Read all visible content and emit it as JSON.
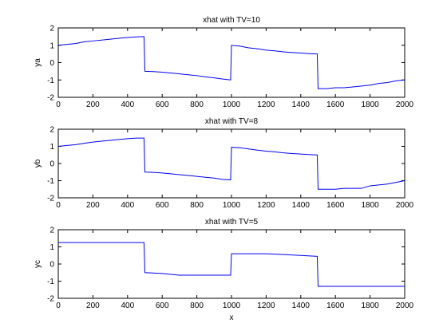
{
  "chart_data": [
    {
      "type": "line",
      "title": "xhat with TV=10",
      "xlabel": "",
      "ylabel": "ya",
      "xlim": [
        0,
        2000
      ],
      "ylim": [
        -2,
        2
      ],
      "xticks": [
        0,
        200,
        400,
        600,
        800,
        1000,
        1200,
        1400,
        1600,
        1800,
        2000
      ],
      "yticks": [
        -2,
        -1,
        0,
        1,
        2
      ],
      "grid": false,
      "line_color": "#0000ff",
      "series": [
        {
          "x": [
            0,
            50,
            100,
            150,
            200,
            250,
            300,
            350,
            400,
            450,
            495,
            500,
            550,
            600,
            650,
            700,
            750,
            800,
            850,
            900,
            950,
            995,
            1000,
            1050,
            1100,
            1150,
            1200,
            1250,
            1300,
            1350,
            1400,
            1450,
            1495,
            1500,
            1550,
            1600,
            1650,
            1700,
            1750,
            1800,
            1850,
            1900,
            1950,
            2000
          ],
          "y": [
            1.0,
            1.05,
            1.1,
            1.2,
            1.25,
            1.3,
            1.35,
            1.4,
            1.45,
            1.48,
            1.5,
            -0.5,
            -0.52,
            -0.55,
            -0.6,
            -0.65,
            -0.7,
            -0.75,
            -0.82,
            -0.88,
            -0.95,
            -1.0,
            1.0,
            0.95,
            0.85,
            0.8,
            0.72,
            0.68,
            0.62,
            0.58,
            0.55,
            0.52,
            0.5,
            -1.5,
            -1.5,
            -1.45,
            -1.45,
            -1.4,
            -1.35,
            -1.3,
            -1.2,
            -1.15,
            -1.05,
            -1.0
          ]
        }
      ]
    },
    {
      "type": "line",
      "title": "xhat with TV=8",
      "xlabel": "",
      "ylabel": "yb",
      "xlim": [
        0,
        2000
      ],
      "ylim": [
        -2,
        2
      ],
      "xticks": [
        0,
        200,
        400,
        600,
        800,
        1000,
        1200,
        1400,
        1600,
        1800,
        2000
      ],
      "yticks": [
        -2,
        -1,
        0,
        1,
        2
      ],
      "grid": false,
      "line_color": "#0000ff",
      "series": [
        {
          "x": [
            0,
            50,
            100,
            150,
            200,
            250,
            300,
            350,
            400,
            450,
            495,
            500,
            550,
            600,
            650,
            700,
            750,
            800,
            850,
            900,
            950,
            995,
            1000,
            1050,
            1100,
            1150,
            1200,
            1250,
            1300,
            1350,
            1400,
            1450,
            1495,
            1500,
            1550,
            1600,
            1650,
            1700,
            1750,
            1800,
            1850,
            1900,
            1950,
            2000
          ],
          "y": [
            1.0,
            1.05,
            1.1,
            1.18,
            1.25,
            1.3,
            1.35,
            1.4,
            1.45,
            1.48,
            1.48,
            -0.5,
            -0.52,
            -0.55,
            -0.6,
            -0.65,
            -0.7,
            -0.75,
            -0.8,
            -0.85,
            -0.93,
            -0.95,
            0.95,
            0.92,
            0.85,
            0.78,
            0.72,
            0.68,
            0.62,
            0.58,
            0.55,
            0.52,
            0.5,
            -1.5,
            -1.5,
            -1.5,
            -1.45,
            -1.45,
            -1.45,
            -1.3,
            -1.25,
            -1.2,
            -1.1,
            -1.0
          ]
        }
      ]
    },
    {
      "type": "line",
      "title": "xhat with TV=5",
      "xlabel": "x",
      "ylabel": "yc",
      "xlim": [
        0,
        2000
      ],
      "ylim": [
        -2,
        2
      ],
      "xticks": [
        0,
        200,
        400,
        600,
        800,
        1000,
        1200,
        1400,
        1600,
        1800,
        2000
      ],
      "yticks": [
        -2,
        -1,
        0,
        1,
        2
      ],
      "grid": false,
      "line_color": "#0000ff",
      "series": [
        {
          "x": [
            0,
            495,
            500,
            600,
            700,
            800,
            900,
            995,
            1000,
            1100,
            1200,
            1300,
            1400,
            1495,
            1500,
            1600,
            1700,
            1800,
            1900,
            2000
          ],
          "y": [
            1.25,
            1.25,
            -0.5,
            -0.55,
            -0.65,
            -0.65,
            -0.65,
            -0.65,
            0.6,
            0.6,
            0.6,
            0.55,
            0.5,
            0.45,
            -1.3,
            -1.3,
            -1.3,
            -1.3,
            -1.3,
            -1.3
          ]
        }
      ]
    }
  ]
}
